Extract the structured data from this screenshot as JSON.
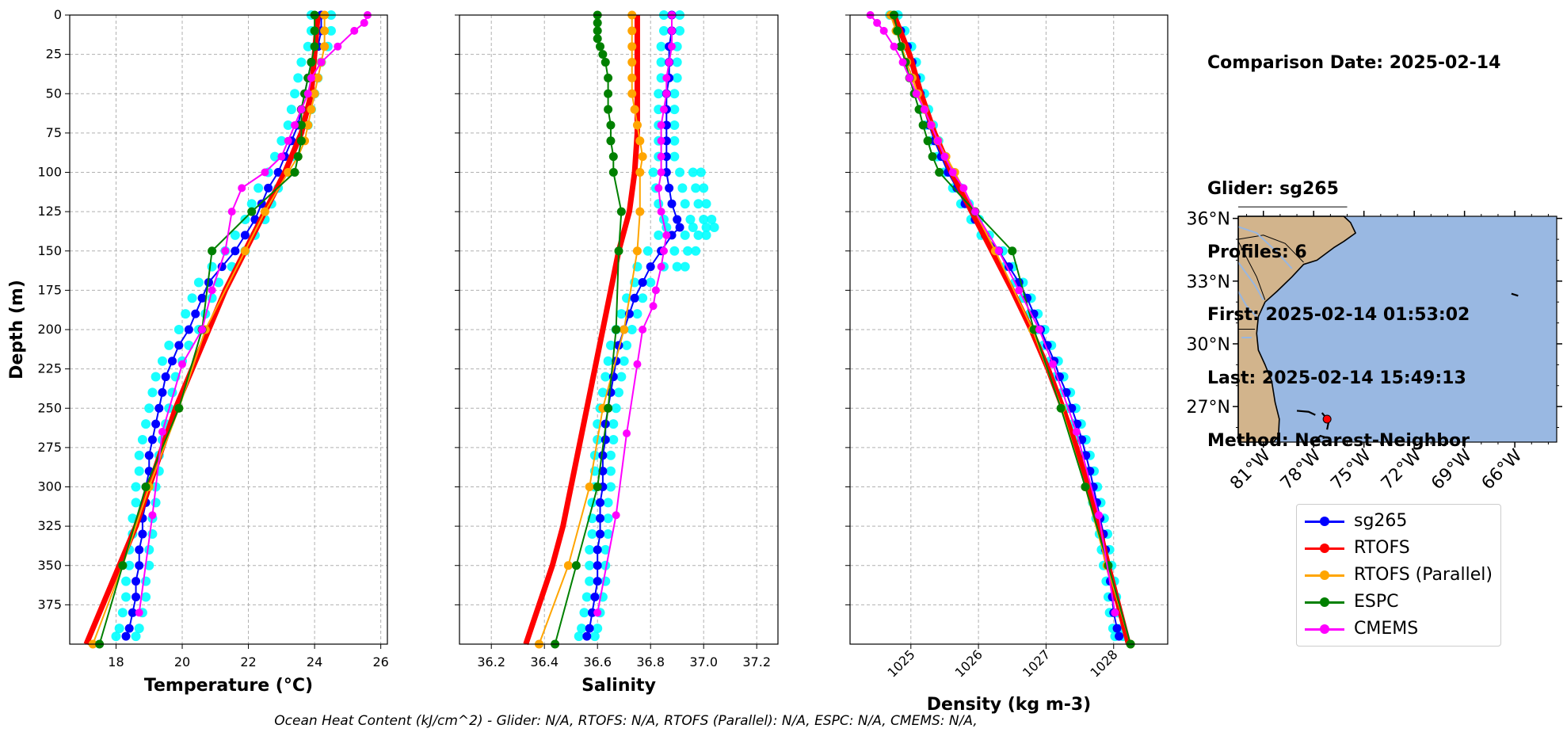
{
  "chart_data": [
    {
      "type": "line",
      "xlabel": "Temperature (°C)",
      "ylabel": "Depth (m)",
      "xlim": [
        16.6,
        26.2
      ],
      "ylim": [
        400,
        0
      ],
      "xticks": [
        18,
        20,
        22,
        24,
        26
      ],
      "yticks": [
        0,
        25,
        50,
        75,
        100,
        125,
        150,
        175,
        200,
        225,
        250,
        275,
        300,
        325,
        350,
        375
      ],
      "grid": true,
      "series": [
        {
          "name": "sg265",
          "color": "#0000ff",
          "depths": [
            0,
            10,
            20,
            30,
            40,
            50,
            60,
            70,
            80,
            90,
            100,
            110,
            120,
            130,
            140,
            150,
            160,
            170,
            180,
            190,
            200,
            210,
            220,
            230,
            240,
            250,
            260,
            270,
            280,
            290,
            300,
            310,
            320,
            330,
            340,
            350,
            360,
            370,
            380,
            390,
            395
          ],
          "values": [
            24.2,
            24.2,
            24.1,
            23.9,
            23.8,
            23.7,
            23.6,
            23.5,
            23.3,
            23.1,
            22.9,
            22.6,
            22.4,
            22.2,
            21.9,
            21.6,
            21.2,
            20.8,
            20.6,
            20.4,
            20.2,
            19.9,
            19.7,
            19.5,
            19.4,
            19.3,
            19.2,
            19.1,
            19.0,
            19.0,
            18.9,
            18.9,
            18.8,
            18.8,
            18.7,
            18.7,
            18.6,
            18.6,
            18.5,
            18.4,
            18.3
          ]
        },
        {
          "name": "RTOFS",
          "color": "#ff0000",
          "depths": [
            0,
            25,
            50,
            75,
            100,
            125,
            150,
            175,
            200,
            225,
            250,
            275,
            300,
            325,
            350,
            375,
            400
          ],
          "values": [
            24.1,
            24.0,
            23.9,
            23.6,
            23.1,
            22.5,
            21.9,
            21.3,
            20.8,
            20.3,
            19.8,
            19.4,
            19.0,
            18.6,
            18.1,
            17.6,
            17.1
          ]
        },
        {
          "name": "RTOFS (Parallel)",
          "color": "#ffa500",
          "depths": [
            0,
            10,
            20,
            30,
            40,
            50,
            60,
            70,
            80,
            90,
            100,
            125,
            150,
            200,
            250,
            300,
            350,
            400
          ],
          "values": [
            24.3,
            24.3,
            24.3,
            24.2,
            24.1,
            24.0,
            23.9,
            23.8,
            23.7,
            23.5,
            23.2,
            22.5,
            21.9,
            20.7,
            19.9,
            19.0,
            18.2,
            17.3
          ]
        },
        {
          "name": "ESPC",
          "color": "#008000",
          "depths": [
            0,
            10,
            20,
            30,
            40,
            50,
            60,
            70,
            80,
            90,
            100,
            125,
            150,
            200,
            250,
            300,
            350,
            400
          ],
          "values": [
            24.0,
            24.0,
            24.0,
            23.9,
            23.8,
            23.7,
            23.6,
            23.6,
            23.6,
            23.5,
            23.4,
            22.1,
            20.9,
            20.6,
            19.9,
            18.9,
            18.2,
            17.5
          ]
        },
        {
          "name": "CMEMS",
          "color": "#ff00ff",
          "depths": [
            0,
            5,
            10,
            20,
            30,
            40,
            50,
            60,
            70,
            80,
            90,
            100,
            110,
            125,
            150,
            175,
            200,
            222,
            265,
            318,
            380
          ],
          "values": [
            25.6,
            25.5,
            25.2,
            24.7,
            24.2,
            23.9,
            23.8,
            23.6,
            23.4,
            23.2,
            23.0,
            22.5,
            21.8,
            21.5,
            21.3,
            20.9,
            20.6,
            20.0,
            19.4,
            19.1,
            18.7
          ]
        }
      ]
    },
    {
      "type": "line",
      "xlabel": "Salinity",
      "ylabel": "",
      "xlim": [
        36.08,
        37.28
      ],
      "ylim": [
        400,
        0
      ],
      "xticks": [
        36.2,
        36.4,
        36.6,
        36.8,
        37.0,
        37.2
      ],
      "grid": true,
      "series": [
        {
          "name": "sg265",
          "color": "#0000ff",
          "depths": [
            0,
            10,
            20,
            30,
            40,
            50,
            60,
            70,
            80,
            90,
            100,
            110,
            120,
            130,
            135,
            140,
            150,
            160,
            170,
            180,
            190,
            200,
            210,
            220,
            230,
            240,
            250,
            260,
            270,
            280,
            290,
            300,
            310,
            320,
            330,
            340,
            350,
            360,
            370,
            380,
            390,
            395
          ],
          "values": [
            36.88,
            36.88,
            36.87,
            36.87,
            36.87,
            36.86,
            36.86,
            36.86,
            36.86,
            36.86,
            36.86,
            36.87,
            36.88,
            36.9,
            36.91,
            36.88,
            36.84,
            36.8,
            36.77,
            36.74,
            36.72,
            36.7,
            36.68,
            36.67,
            36.66,
            36.65,
            36.64,
            36.63,
            36.63,
            36.62,
            36.62,
            36.62,
            36.61,
            36.61,
            36.61,
            36.6,
            36.6,
            36.6,
            36.59,
            36.58,
            36.57,
            36.56
          ]
        },
        {
          "name": "RTOFS",
          "color": "#ff0000",
          "depths": [
            0,
            25,
            50,
            75,
            100,
            125,
            150,
            175,
            200,
            225,
            250,
            275,
            300,
            325,
            350,
            375,
            400
          ],
          "values": [
            36.75,
            36.75,
            36.75,
            36.75,
            36.74,
            36.72,
            36.68,
            36.65,
            36.62,
            36.59,
            36.56,
            36.53,
            36.5,
            36.47,
            36.43,
            36.38,
            36.33
          ]
        },
        {
          "name": "RTOFS (Parallel)",
          "color": "#ffa500",
          "depths": [
            0,
            10,
            20,
            30,
            40,
            50,
            60,
            70,
            80,
            90,
            100,
            125,
            150,
            200,
            250,
            300,
            350,
            400
          ],
          "values": [
            36.73,
            36.73,
            36.73,
            36.73,
            36.73,
            36.73,
            36.74,
            36.75,
            36.76,
            36.77,
            36.76,
            36.76,
            36.75,
            36.7,
            36.62,
            36.57,
            36.49,
            36.38
          ]
        },
        {
          "name": "ESPC",
          "color": "#008000",
          "depths": [
            0,
            5,
            10,
            15,
            20,
            25,
            30,
            40,
            50,
            60,
            70,
            80,
            90,
            100,
            125,
            150,
            200,
            250,
            300,
            350,
            400
          ],
          "values": [
            36.6,
            36.6,
            36.6,
            36.6,
            36.61,
            36.62,
            36.63,
            36.64,
            36.64,
            36.64,
            36.65,
            36.65,
            36.66,
            36.66,
            36.69,
            36.68,
            36.67,
            36.64,
            36.6,
            36.52,
            36.44
          ]
        },
        {
          "name": "CMEMS",
          "color": "#ff00ff",
          "depths": [
            0,
            10,
            20,
            30,
            40,
            50,
            60,
            70,
            80,
            90,
            100,
            110,
            125,
            140,
            150,
            160,
            175,
            185,
            200,
            222,
            266,
            318,
            380
          ],
          "values": [
            36.88,
            36.88,
            36.88,
            36.87,
            36.86,
            36.86,
            36.85,
            36.84,
            36.84,
            36.84,
            36.84,
            36.83,
            36.84,
            36.86,
            36.85,
            36.84,
            36.82,
            36.81,
            36.77,
            36.75,
            36.71,
            36.67,
            36.6
          ]
        }
      ]
    },
    {
      "type": "line",
      "xlabel": "Density (kg m-3)",
      "ylabel": "",
      "xlim": [
        1024.1,
        1028.8
      ],
      "ylim": [
        400,
        0
      ],
      "xticks": [
        1025,
        1026,
        1027,
        1028
      ],
      "grid": true,
      "series": [
        {
          "name": "sg265",
          "color": "#0000ff",
          "depths": [
            0,
            10,
            20,
            30,
            40,
            50,
            60,
            70,
            80,
            90,
            100,
            110,
            120,
            130,
            140,
            150,
            160,
            170,
            180,
            190,
            200,
            210,
            220,
            230,
            240,
            250,
            260,
            270,
            280,
            290,
            300,
            310,
            320,
            330,
            340,
            350,
            360,
            370,
            380,
            390,
            395
          ],
          "values": [
            1024.75,
            1024.85,
            1024.95,
            1025.02,
            1025.08,
            1025.14,
            1025.2,
            1025.27,
            1025.35,
            1025.45,
            1025.55,
            1025.68,
            1025.8,
            1025.95,
            1026.1,
            1026.3,
            1026.45,
            1026.6,
            1026.72,
            1026.82,
            1026.92,
            1027.02,
            1027.12,
            1027.2,
            1027.3,
            1027.38,
            1027.46,
            1027.53,
            1027.59,
            1027.65,
            1027.7,
            1027.75,
            1027.8,
            1027.85,
            1027.88,
            1027.91,
            1027.95,
            1027.98,
            1028.0,
            1028.05,
            1028.08
          ]
        },
        {
          "name": "RTOFS",
          "color": "#ff0000",
          "depths": [
            0,
            25,
            50,
            75,
            100,
            125,
            150,
            175,
            200,
            225,
            250,
            275,
            300,
            325,
            350,
            375,
            400
          ],
          "values": [
            1024.75,
            1024.98,
            1025.15,
            1025.35,
            1025.6,
            1025.9,
            1026.2,
            1026.5,
            1026.78,
            1027.03,
            1027.25,
            1027.45,
            1027.62,
            1027.78,
            1027.92,
            1028.07,
            1028.22
          ]
        },
        {
          "name": "RTOFS (Parallel)",
          "color": "#ffa500",
          "depths": [
            0,
            10,
            20,
            30,
            40,
            50,
            60,
            70,
            80,
            90,
            100,
            125,
            150,
            200,
            250,
            300,
            350,
            400
          ],
          "values": [
            1024.7,
            1024.78,
            1024.86,
            1024.94,
            1025.02,
            1025.1,
            1025.2,
            1025.3,
            1025.4,
            1025.52,
            1025.65,
            1025.95,
            1026.25,
            1026.8,
            1027.23,
            1027.58,
            1027.9,
            1028.25
          ]
        },
        {
          "name": "ESPC",
          "color": "#008000",
          "depths": [
            0,
            10,
            20,
            30,
            40,
            50,
            60,
            70,
            80,
            90,
            100,
            125,
            150,
            200,
            250,
            300,
            350,
            400
          ],
          "values": [
            1024.75,
            1024.8,
            1024.85,
            1024.92,
            1024.98,
            1025.05,
            1025.12,
            1025.18,
            1025.25,
            1025.32,
            1025.42,
            1025.95,
            1026.5,
            1026.82,
            1027.22,
            1027.58,
            1027.92,
            1028.25
          ]
        },
        {
          "name": "CMEMS",
          "color": "#ff00ff",
          "depths": [
            0,
            5,
            10,
            20,
            30,
            40,
            50,
            60,
            70,
            80,
            90,
            100,
            110,
            125,
            150,
            175,
            200,
            222,
            265,
            318,
            380
          ],
          "values": [
            1024.4,
            1024.5,
            1024.6,
            1024.75,
            1024.88,
            1024.98,
            1025.08,
            1025.2,
            1025.3,
            1025.4,
            1025.5,
            1025.62,
            1025.78,
            1025.95,
            1026.3,
            1026.6,
            1026.9,
            1027.1,
            1027.45,
            1027.78,
            1028.02
          ]
        }
      ]
    }
  ],
  "info": {
    "comparison_date": "Comparison Date: 2025-02-14",
    "glider": "Glider: sg265",
    "profiles": "Profiles: 6",
    "first": "First: 2025-02-14 01:53:02",
    "last": "Last: 2025-02-14 15:49:13",
    "method": "Method: Nearest-Neighbor"
  },
  "map": {
    "lat_ticks": [
      "36°N",
      "33°N",
      "30°N",
      "27°N"
    ],
    "lon_ticks": [
      "81°W",
      "78°W",
      "75°W",
      "72°W",
      "69°W",
      "66°W"
    ],
    "ocean_color": "#99b8e2",
    "land_color": "#d2b48c",
    "glider_marker_color": "#ff0000"
  },
  "legend": [
    {
      "label": "sg265",
      "color": "#0000ff"
    },
    {
      "label": "RTOFS",
      "color": "#ff0000"
    },
    {
      "label": "RTOFS (Parallel)",
      "color": "#ffa500"
    },
    {
      "label": "ESPC",
      "color": "#008000"
    },
    {
      "label": "CMEMS",
      "color": "#ff00ff"
    }
  ],
  "footer": "Ocean Heat Content (kJ/cm^2) - Glider: N/A,  RTOFS: N/A,  RTOFS (Parallel): N/A,  ESPC: N/A,  CMEMS: N/A,"
}
